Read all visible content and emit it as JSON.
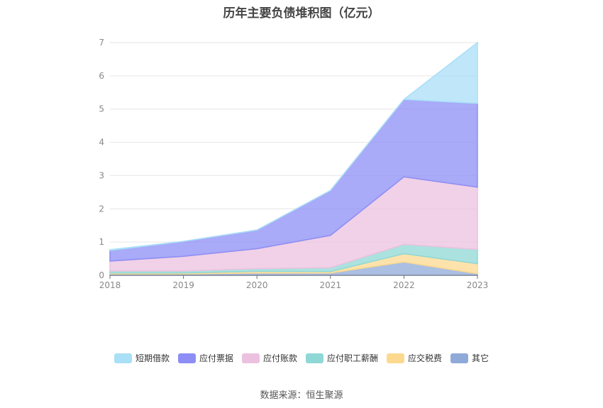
{
  "chart_data": {
    "type": "area",
    "stacked": true,
    "title": "历年主要负债堆积图（亿元）",
    "x": [
      "2018",
      "2019",
      "2020",
      "2021",
      "2022",
      "2023"
    ],
    "ylim": [
      0,
      7
    ],
    "yticks": [
      "0",
      "1",
      "2",
      "3",
      "4",
      "5",
      "6",
      "7"
    ],
    "grid": true,
    "legend_position": "bottom",
    "series": [
      {
        "name": "其它",
        "color": "#8fa9d8",
        "values": [
          0.04,
          0.04,
          0.07,
          0.07,
          0.4,
          0.05
        ]
      },
      {
        "name": "应交税费",
        "color": "#fcd98f",
        "values": [
          0.03,
          0.03,
          0.05,
          0.04,
          0.25,
          0.3
        ]
      },
      {
        "name": "应付职工薪酬",
        "color": "#8fd8d6",
        "values": [
          0.06,
          0.06,
          0.08,
          0.12,
          0.28,
          0.43
        ]
      },
      {
        "name": "应付账款",
        "color": "#ecc1df",
        "values": [
          0.3,
          0.44,
          0.6,
          0.97,
          2.03,
          1.87
        ]
      },
      {
        "name": "应付票据",
        "color": "#8c8ef5",
        "values": [
          0.32,
          0.45,
          0.56,
          1.35,
          2.33,
          2.52
        ]
      },
      {
        "name": "短期借款",
        "color": "#a9dff7",
        "values": [
          0.02,
          0.0,
          0.0,
          0.0,
          0.0,
          1.83
        ]
      }
    ]
  },
  "source": "数据来源：恒生聚源"
}
